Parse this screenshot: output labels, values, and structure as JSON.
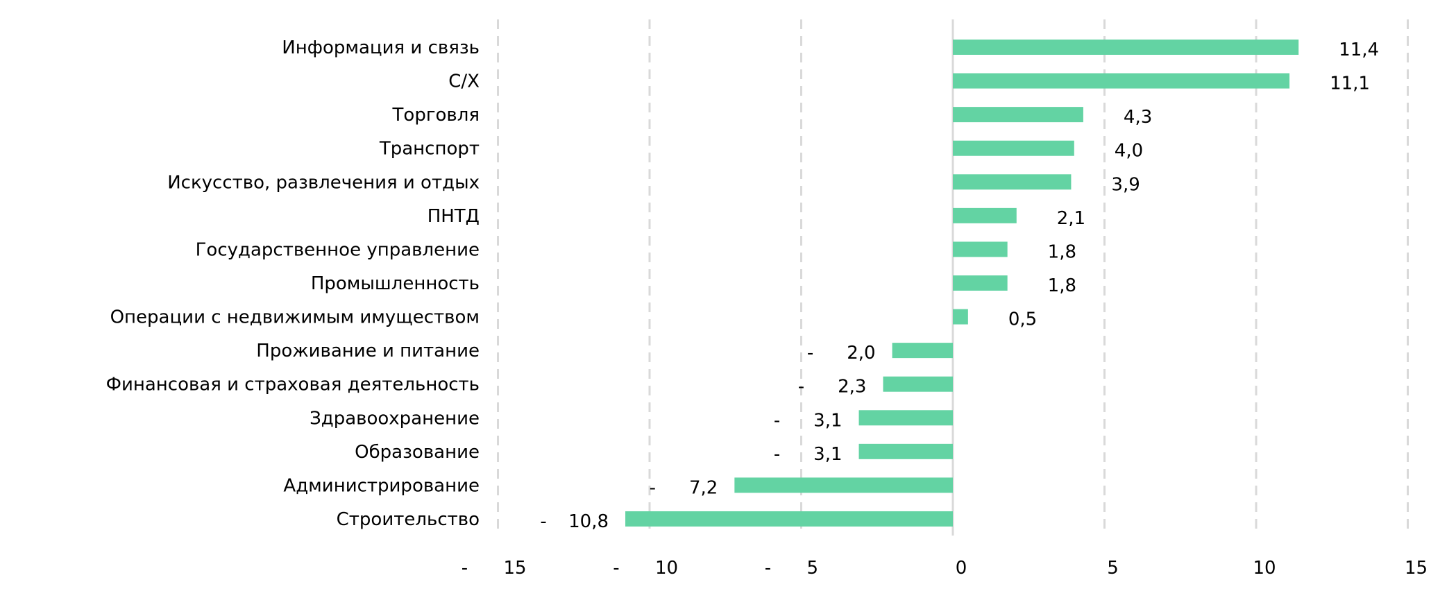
{
  "chart_data": {
    "type": "bar",
    "orientation": "horizontal",
    "title": "",
    "xlabel": "",
    "ylabel": "",
    "xlim": [
      -15,
      15
    ],
    "x_ticks": [
      -15,
      -10,
      -5,
      0,
      5,
      10,
      15
    ],
    "x_tick_labels": [
      "-   15",
      "-   10",
      "-   5",
      "0",
      "5",
      "10",
      "15"
    ],
    "grid": "vertical dashed",
    "bar_color": "#63d3a3",
    "grid_color": "#d9d9d9",
    "categories": [
      "Информация и связь",
      "С/Х",
      "Торговля",
      "Транспорт",
      "Искусство, развлечения и отдых",
      "ПНТД",
      "Государственное управление",
      "Промышленность",
      "Операции с недвижимым имуществом",
      "Проживание и питание",
      "Финансовая и страховая деятельность",
      "Здравоохранение",
      "Образование",
      "Администрирование",
      "Строительство"
    ],
    "values": [
      11.4,
      11.1,
      4.3,
      4.0,
      3.9,
      2.1,
      1.8,
      1.8,
      0.5,
      -2.0,
      -2.3,
      -3.1,
      -3.1,
      -7.2,
      -10.8
    ],
    "value_labels": [
      "11,4",
      "11,1",
      "4,3",
      "4,0",
      "3,9",
      "2,1",
      "1,8",
      "1,8",
      "0,5",
      "2,0",
      "2,3",
      "3,1",
      "3,1",
      "7,2",
      "10,8"
    ],
    "negative_sign": "-"
  }
}
